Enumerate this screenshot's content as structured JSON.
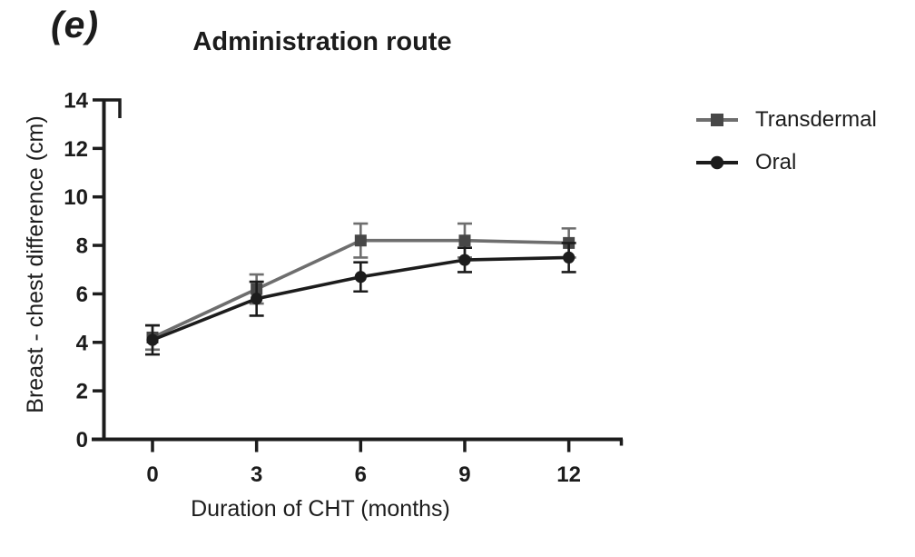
{
  "panel_label": "(e)",
  "title": "Administration route",
  "colors": {
    "axis": "#1c1c1c",
    "transdermal_line": "#6e6e6e",
    "transdermal_marker": "#474747",
    "oral": "#1c1c1c",
    "background": "#ffffff"
  },
  "legend": [
    {
      "label": "Transdermal",
      "marker": "square"
    },
    {
      "label": "Oral",
      "marker": "circle"
    }
  ],
  "chart_data": {
    "type": "line",
    "title": "Administration route",
    "xlabel": "Duration of CHT (months)",
    "ylabel": "Breast - chest difference (cm)",
    "x": [
      0,
      3,
      6,
      9,
      12
    ],
    "x_ticks": [
      0,
      3,
      6,
      9,
      12
    ],
    "y_ticks": [
      0,
      2,
      4,
      6,
      8,
      10,
      12,
      14
    ],
    "xlim": [
      0,
      12
    ],
    "ylim": [
      0,
      14
    ],
    "grid": false,
    "error_bars": true,
    "legend_position": "right",
    "series": [
      {
        "name": "Transdermal",
        "marker": "square",
        "line_color": "#6e6e6e",
        "marker_color": "#474747",
        "values": [
          4.2,
          6.2,
          8.2,
          8.2,
          8.1
        ],
        "errors": [
          0.5,
          0.6,
          0.7,
          0.7,
          0.6
        ]
      },
      {
        "name": "Oral",
        "marker": "circle",
        "line_color": "#1c1c1c",
        "marker_color": "#1c1c1c",
        "values": [
          4.1,
          5.8,
          6.7,
          7.4,
          7.5
        ],
        "errors": [
          0.6,
          0.7,
          0.6,
          0.5,
          0.6
        ]
      }
    ]
  }
}
